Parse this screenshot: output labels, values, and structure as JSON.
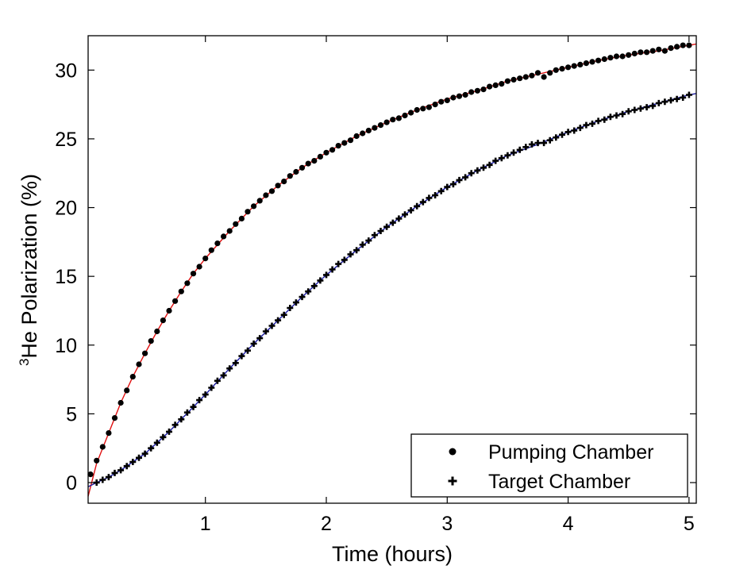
{
  "chart_data": {
    "type": "scatter",
    "xlabel": "Time (hours)",
    "ylabel": {
      "superscript": "3",
      "text": "He Polarization (%)"
    },
    "xlim": [
      0.03,
      5.06
    ],
    "ylim": [
      -1.5,
      32.5
    ],
    "xticks": [
      1,
      2,
      3,
      4,
      5
    ],
    "yticks": [
      0,
      5,
      10,
      15,
      20,
      25,
      30
    ],
    "grid": false,
    "legend_position": "bottom-right",
    "colors": {
      "pumping_fit": "#e01010",
      "target_fit": "#1a1aa0",
      "markers": "#000000"
    },
    "series": [
      {
        "name": "Pumping Chamber",
        "marker": "circle",
        "x": [
          0.05,
          0.1,
          0.15,
          0.2,
          0.25,
          0.3,
          0.35,
          0.4,
          0.45,
          0.5,
          0.55,
          0.6,
          0.65,
          0.7,
          0.75,
          0.8,
          0.85,
          0.9,
          0.95,
          1.0,
          1.05,
          1.1,
          1.15,
          1.2,
          1.25,
          1.3,
          1.35,
          1.4,
          1.45,
          1.5,
          1.55,
          1.6,
          1.65,
          1.7,
          1.75,
          1.8,
          1.85,
          1.9,
          1.95,
          2.0,
          2.05,
          2.1,
          2.15,
          2.2,
          2.25,
          2.3,
          2.35,
          2.4,
          2.45,
          2.5,
          2.55,
          2.6,
          2.65,
          2.7,
          2.75,
          2.8,
          2.85,
          2.9,
          2.95,
          3.0,
          3.05,
          3.1,
          3.15,
          3.2,
          3.25,
          3.3,
          3.35,
          3.4,
          3.45,
          3.5,
          3.55,
          3.6,
          3.65,
          3.7,
          3.75,
          3.8,
          3.85,
          3.9,
          3.95,
          4.0,
          4.05,
          4.1,
          4.15,
          4.2,
          4.25,
          4.3,
          4.35,
          4.4,
          4.45,
          4.5,
          4.55,
          4.6,
          4.65,
          4.7,
          4.75,
          4.8,
          4.85,
          4.9,
          4.95,
          5.0
        ],
        "y": [
          0.6,
          1.6,
          2.6,
          3.6,
          4.7,
          5.8,
          6.7,
          7.7,
          8.6,
          9.4,
          10.3,
          11.0,
          11.8,
          12.5,
          13.2,
          13.9,
          14.5,
          15.2,
          15.7,
          16.3,
          16.9,
          17.4,
          17.9,
          18.3,
          18.8,
          19.2,
          19.7,
          20.1,
          20.5,
          20.9,
          21.2,
          21.6,
          21.9,
          22.3,
          22.6,
          22.9,
          23.2,
          23.4,
          23.7,
          24.0,
          24.2,
          24.5,
          24.7,
          24.9,
          25.2,
          25.4,
          25.6,
          25.8,
          26.0,
          26.2,
          26.4,
          26.5,
          26.7,
          26.9,
          27.1,
          27.2,
          27.3,
          27.5,
          27.7,
          27.8,
          28.0,
          28.1,
          28.2,
          28.4,
          28.5,
          28.6,
          28.8,
          28.9,
          29.0,
          29.2,
          29.3,
          29.4,
          29.5,
          29.6,
          29.8,
          29.5,
          29.8,
          30.0,
          30.1,
          30.2,
          30.3,
          30.4,
          30.5,
          30.6,
          30.7,
          30.8,
          30.9,
          31.0,
          31.0,
          31.1,
          31.2,
          31.3,
          31.3,
          31.4,
          31.5,
          31.4,
          31.6,
          31.7,
          31.8,
          31.8
        ]
      },
      {
        "name": "Target Chamber",
        "marker": "plus",
        "x": [
          0.1,
          0.15,
          0.2,
          0.25,
          0.3,
          0.35,
          0.4,
          0.45,
          0.5,
          0.55,
          0.6,
          0.65,
          0.7,
          0.75,
          0.8,
          0.85,
          0.9,
          0.95,
          1.0,
          1.05,
          1.1,
          1.15,
          1.2,
          1.25,
          1.3,
          1.35,
          1.4,
          1.45,
          1.5,
          1.55,
          1.6,
          1.65,
          1.7,
          1.75,
          1.8,
          1.85,
          1.9,
          1.95,
          2.0,
          2.05,
          2.1,
          2.15,
          2.2,
          2.25,
          2.3,
          2.35,
          2.4,
          2.45,
          2.5,
          2.55,
          2.6,
          2.65,
          2.7,
          2.75,
          2.8,
          2.85,
          2.9,
          2.95,
          3.0,
          3.05,
          3.1,
          3.15,
          3.2,
          3.25,
          3.3,
          3.35,
          3.4,
          3.45,
          3.5,
          3.55,
          3.6,
          3.65,
          3.7,
          3.75,
          3.8,
          3.85,
          3.9,
          3.95,
          4.0,
          4.05,
          4.1,
          4.15,
          4.2,
          4.25,
          4.3,
          4.35,
          4.4,
          4.45,
          4.5,
          4.55,
          4.6,
          4.65,
          4.7,
          4.75,
          4.8,
          4.85,
          4.9,
          4.95,
          5.0
        ],
        "y": [
          0.0,
          0.2,
          0.4,
          0.7,
          0.9,
          1.2,
          1.5,
          1.8,
          2.1,
          2.5,
          2.9,
          3.3,
          3.7,
          4.2,
          4.6,
          5.1,
          5.5,
          6.0,
          6.4,
          6.9,
          7.4,
          7.8,
          8.3,
          8.7,
          9.2,
          9.6,
          10.1,
          10.5,
          11.0,
          11.4,
          11.8,
          12.2,
          12.7,
          13.1,
          13.5,
          13.9,
          14.3,
          14.7,
          15.1,
          15.5,
          15.9,
          16.2,
          16.6,
          16.9,
          17.3,
          17.6,
          18.0,
          18.3,
          18.6,
          18.9,
          19.2,
          19.5,
          19.8,
          20.1,
          20.4,
          20.7,
          20.9,
          21.2,
          21.5,
          21.7,
          22.0,
          22.2,
          22.5,
          22.7,
          22.9,
          23.1,
          23.4,
          23.6,
          23.8,
          24.0,
          24.2,
          24.4,
          24.6,
          24.7,
          24.7,
          24.9,
          25.1,
          25.3,
          25.5,
          25.6,
          25.8,
          26.0,
          26.1,
          26.3,
          26.4,
          26.6,
          26.7,
          26.8,
          27.0,
          27.1,
          27.2,
          27.3,
          27.4,
          27.6,
          27.7,
          27.8,
          27.9,
          28.0,
          28.2
        ]
      }
    ],
    "fits": [
      {
        "for": "Pumping Chamber",
        "x": [
          0.03,
          0.1,
          0.2,
          0.3,
          0.4,
          0.5,
          0.6,
          0.7,
          0.8,
          0.9,
          1.0,
          1.2,
          1.4,
          1.6,
          1.8,
          2.0,
          2.25,
          2.5,
          2.75,
          3.0,
          3.25,
          3.5,
          3.75,
          4.0,
          4.25,
          4.5,
          4.75,
          5.0,
          5.06
        ],
        "y": [
          -1.0,
          1.4,
          3.6,
          5.8,
          7.7,
          9.4,
          11.0,
          12.5,
          13.9,
          15.2,
          16.3,
          18.3,
          20.1,
          21.6,
          22.9,
          24.0,
          25.2,
          26.2,
          27.1,
          27.9,
          28.5,
          29.2,
          29.7,
          30.2,
          30.7,
          31.1,
          31.4,
          31.8,
          31.9
        ]
      },
      {
        "for": "Target Chamber",
        "x": [
          0.03,
          0.1,
          0.2,
          0.3,
          0.4,
          0.5,
          0.6,
          0.7,
          0.8,
          0.9,
          1.0,
          1.2,
          1.4,
          1.6,
          1.8,
          2.0,
          2.25,
          2.5,
          2.75,
          3.0,
          3.25,
          3.5,
          3.75,
          4.0,
          4.25,
          4.5,
          4.75,
          5.0,
          5.06
        ],
        "y": [
          -0.3,
          0.0,
          0.4,
          0.9,
          1.5,
          2.1,
          2.9,
          3.7,
          4.6,
          5.5,
          6.4,
          8.3,
          10.1,
          11.8,
          13.5,
          15.1,
          16.9,
          18.6,
          20.1,
          21.5,
          22.7,
          23.8,
          24.6,
          25.5,
          26.3,
          27.0,
          27.6,
          28.2,
          28.3
        ]
      }
    ]
  }
}
